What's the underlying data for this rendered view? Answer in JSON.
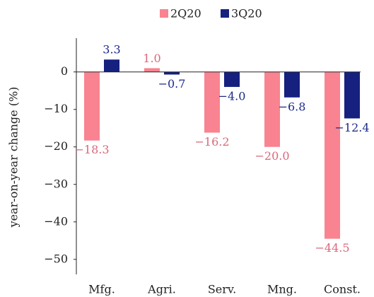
{
  "chart_data": {
    "type": "bar",
    "y_label": "year-on-year change (%)",
    "categories": [
      "Mfg.",
      "Agri.",
      "Serv.",
      "Mng.",
      "Const."
    ],
    "series": [
      {
        "name": "2Q20",
        "color": "#f98390",
        "label_color": "#d9697a",
        "values": [
          -18.3,
          1.0,
          -16.2,
          -20.0,
          -44.5
        ],
        "value_labels": [
          "−18.3",
          "1.0",
          "−16.2",
          "−20.0",
          "−44.5"
        ]
      },
      {
        "name": "3Q20",
        "color": "#15207f",
        "label_color": "#1c2a8a",
        "values": [
          3.3,
          -0.7,
          -4.0,
          -6.8,
          -12.4
        ],
        "value_labels": [
          "3.3",
          "−0.7",
          "−4.0",
          "−6.8",
          "−12.4"
        ]
      }
    ],
    "ylim": [
      -54,
      9
    ],
    "yticks": [
      0,
      {
        "value": -10,
        "label": "−10"
      },
      {
        "value": -20,
        "label": "−20"
      },
      {
        "value": -30,
        "label": "−30"
      },
      {
        "value": -40,
        "label": "−40"
      },
      {
        "value": -50,
        "label": "−50"
      }
    ],
    "zero_line": true,
    "legend": "top"
  }
}
